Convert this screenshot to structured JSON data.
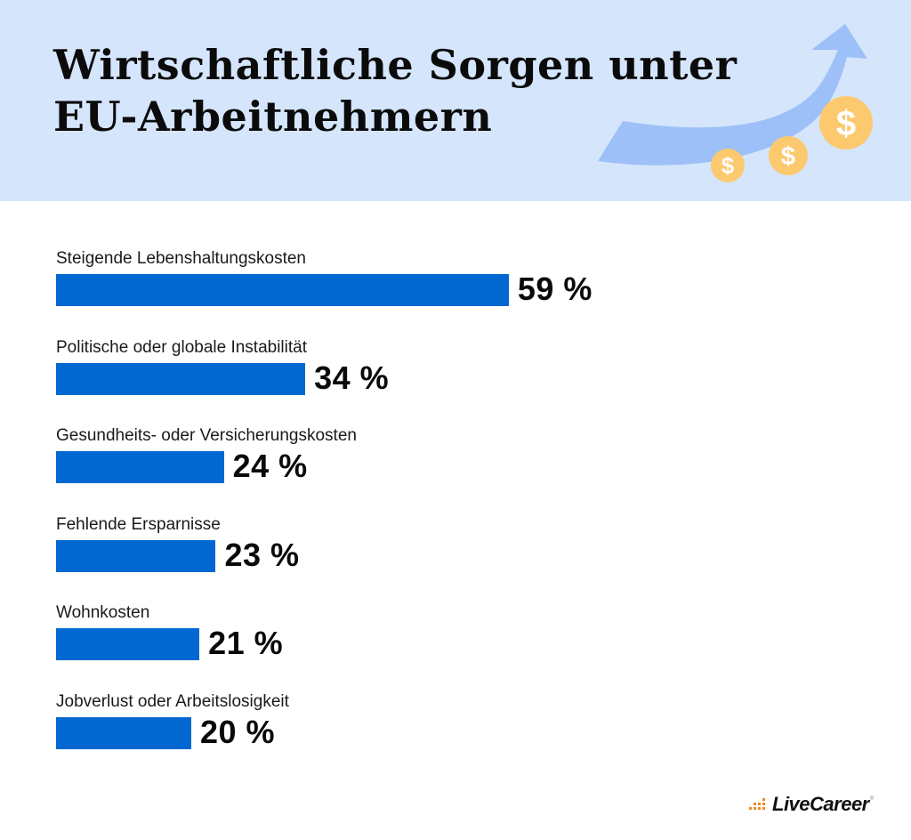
{
  "header": {
    "title_line1": "Wirtschaftliche Sorgen unter",
    "title_line2": "EU-Arbeitnehmern",
    "decoration": {
      "arrow_icon": "trend-up-arrow-icon",
      "coin_icon": "dollar-coin-icon",
      "coin_symbol": "$",
      "colors": {
        "background": "#d5e5fb",
        "arrow": "#9dc0f8",
        "coin": "#fcc96e"
      }
    }
  },
  "chart_data": {
    "type": "bar",
    "orientation": "horizontal",
    "title": "Wirtschaftliche Sorgen unter EU-Arbeitnehmern",
    "xlabel": "",
    "ylabel": "",
    "unit": "%",
    "categories": [
      "Steigende Lebenshaltungskosten",
      "Politische oder globale Instabilität",
      "Gesundheits- oder Versicherungskosten",
      "Fehlende Ersparnisse",
      "Wohnkosten",
      "Jobverlust oder Arbeitslosigkeit"
    ],
    "values": [
      59,
      34,
      24,
      23,
      21,
      20
    ],
    "labels": [
      "59 %",
      "34 %",
      "24 %",
      "23 %",
      "21 %",
      "20 %"
    ],
    "bar_color": "#0068d0",
    "grid": false,
    "legend": "none"
  },
  "footer": {
    "logo_text": "LiveCareer",
    "logo_reg": "®",
    "logo_mark_color": "#f08a1c"
  }
}
